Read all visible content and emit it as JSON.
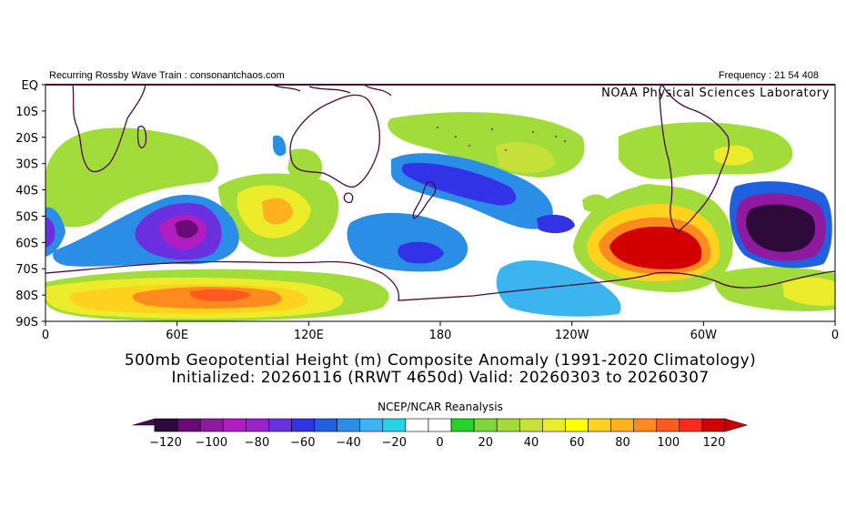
{
  "header": {
    "left_text": "Recurring Rossby Wave Train : consonantchaos.com",
    "right_text": "Frequency : 21 54 408",
    "lab_text": "NOAA Physical Sciences Laboratory"
  },
  "map": {
    "lat_labels": [
      "EQ",
      "10S",
      "20S",
      "30S",
      "40S",
      "50S",
      "60S",
      "70S",
      "80S",
      "90S"
    ],
    "lon_labels": [
      "0",
      "60E",
      "120E",
      "180",
      "120W",
      "60W",
      "0"
    ]
  },
  "titles": {
    "line1": "500mb Geopotential Height (m) Composite Anomaly (1991-2020 Climatology)",
    "line2": "Initialized: 20260116 (RRWT 4650d) Valid: 20260303 to 20260307"
  },
  "colorbar": {
    "title": "NCEP/NCAR Reanalysis",
    "tick_labels": [
      "-120",
      "-100",
      "-80",
      "-60",
      "-40",
      "-20",
      "0",
      "20",
      "40",
      "60",
      "80",
      "100",
      "120"
    ],
    "colors": [
      "#2e0a3a",
      "#6a0a78",
      "#8e1aa0",
      "#b01ec0",
      "#9a22c8",
      "#6a30e0",
      "#3232e6",
      "#2060e0",
      "#2a8ee6",
      "#3cb4f0",
      "#28d2e8",
      "#ffffff",
      "#ffffff",
      "#2ad02a",
      "#7ed63a",
      "#a2dc3a",
      "#c8e03a",
      "#ecec2a",
      "#ffff00",
      "#ffd21e",
      "#ffb21e",
      "#ff8a1e",
      "#ff5a1e",
      "#ff2a1e",
      "#d20000"
    ],
    "under_color": "#4a0a5a",
    "over_color": "#c80000"
  }
}
